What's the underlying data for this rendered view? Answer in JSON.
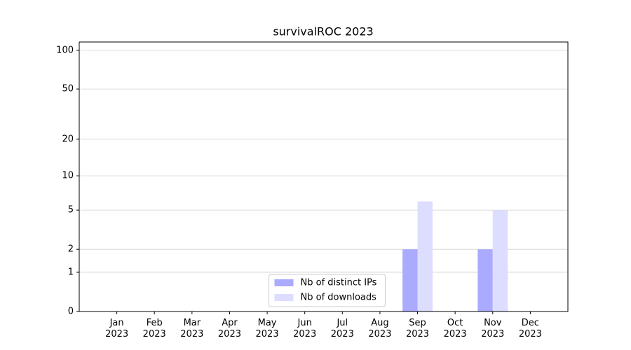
{
  "chart_data": {
    "type": "bar",
    "title": "survivalROC 2023",
    "categories": [
      "Jan 2023",
      "Feb 2023",
      "Mar 2023",
      "Apr 2023",
      "May 2023",
      "Jun 2023",
      "Jul 2023",
      "Aug 2023",
      "Sep 2023",
      "Oct 2023",
      "Nov 2023",
      "Dec 2023"
    ],
    "series": [
      {
        "name": "Nb of distinct IPs",
        "color": "#aaaaff",
        "values": [
          0,
          0,
          0,
          0,
          0,
          0,
          0,
          0,
          2,
          0,
          2,
          0
        ]
      },
      {
        "name": "Nb of downloads",
        "color": "#ddddff",
        "values": [
          0,
          0,
          0,
          0,
          0,
          0,
          0,
          0,
          6,
          0,
          5,
          0
        ]
      }
    ],
    "yscale": "log1p",
    "ylim": [
      0,
      116
    ],
    "yticks": [
      0,
      1,
      2,
      5,
      10,
      20,
      50,
      100
    ],
    "grid": true,
    "legend": "lower center"
  }
}
